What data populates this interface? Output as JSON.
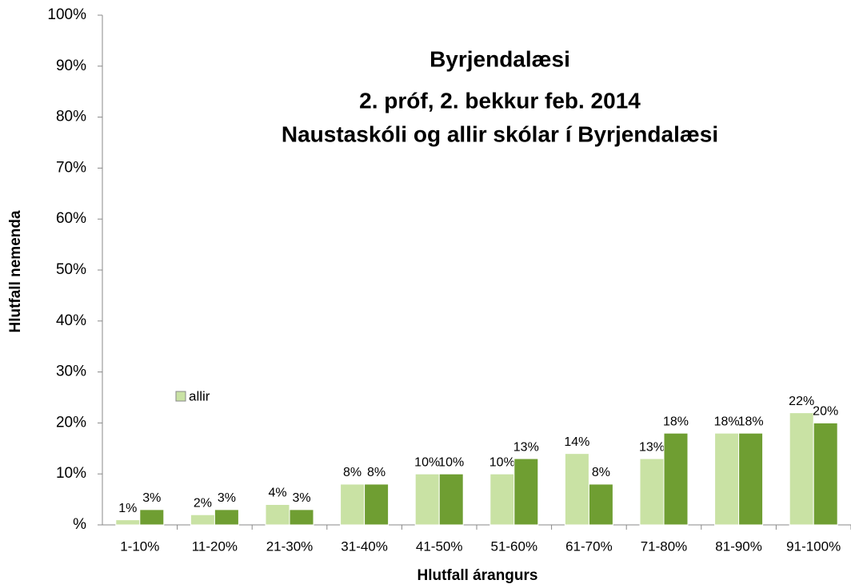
{
  "chart_data": {
    "type": "bar",
    "title": [
      "Byrjendalæsi",
      "2. próf, 2. bekkur feb. 2014",
      "Naustaskóli og allir skólar í Byrjendalæsi"
    ],
    "x_label": "Hlutfall árangurs",
    "y_label": "Hlutfall nemenda",
    "categories": [
      "1-10%",
      "11-20%",
      "21-30%",
      "31-40%",
      "41-50%",
      "51-60%",
      "61-70%",
      "71-80%",
      "81-90%",
      "91-100%"
    ],
    "series": [
      {
        "name": "allir",
        "color": "#c9e2a4",
        "values": [
          1,
          2,
          4,
          8,
          10,
          10,
          14,
          13,
          18,
          22
        ],
        "value_labels": [
          "1%",
          "2%",
          "4%",
          "8%",
          "10%",
          "10%",
          "14%",
          "13%",
          "18%",
          "22%"
        ]
      },
      {
        "color": "#6f9e32",
        "values": [
          3,
          3,
          3,
          8,
          10,
          13,
          8,
          18,
          18,
          20
        ],
        "value_labels": [
          "3%",
          "3%",
          "3%",
          "8%",
          "10%",
          "13%",
          "8%",
          "18%",
          "18%",
          "20%"
        ]
      }
    ],
    "ylim": [
      0,
      100
    ],
    "yticks": [
      {
        "value": 0,
        "label": "%"
      },
      {
        "value": 10,
        "label": "10%"
      },
      {
        "value": 20,
        "label": "20%"
      },
      {
        "value": 30,
        "label": "30%"
      },
      {
        "value": 40,
        "label": "40%"
      },
      {
        "value": 50,
        "label": "50%"
      },
      {
        "value": 60,
        "label": "60%"
      },
      {
        "value": 70,
        "label": "70%"
      },
      {
        "value": 80,
        "label": "80%"
      },
      {
        "value": 90,
        "label": "90%"
      },
      {
        "value": 100,
        "label": "100%"
      }
    ],
    "grid": false
  }
}
